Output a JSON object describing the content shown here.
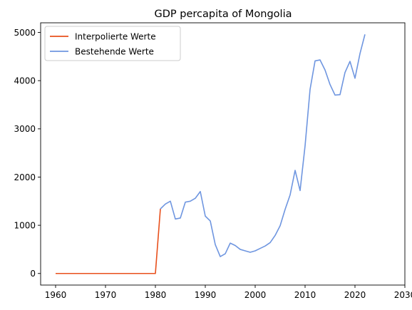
{
  "chart_data": {
    "type": "line",
    "title": "GDP percapita of Mongolia",
    "xlabel": "",
    "ylabel": "",
    "xlim": [
      1957,
      2030
    ],
    "ylim": [
      -240,
      5200
    ],
    "xticks": [
      1960,
      1970,
      1980,
      1990,
      2000,
      2010,
      2020,
      2030
    ],
    "yticks": [
      0,
      1000,
      2000,
      3000,
      4000,
      5000
    ],
    "grid": false,
    "legend_position": "top-left",
    "series": [
      {
        "name": "Interpolierte Werte",
        "color": "#e8501c",
        "x": [
          1960,
          1961,
          1962,
          1963,
          1964,
          1965,
          1966,
          1967,
          1968,
          1969,
          1970,
          1971,
          1972,
          1973,
          1974,
          1975,
          1976,
          1977,
          1978,
          1979,
          1980,
          1981
        ],
        "y": [
          0,
          0,
          0,
          0,
          0,
          0,
          0,
          0,
          0,
          0,
          0,
          0,
          0,
          0,
          0,
          0,
          0,
          0,
          0,
          0,
          0,
          1340
        ]
      },
      {
        "name": "Bestehende Werte",
        "color": "#6f96e0",
        "x": [
          1981,
          1982,
          1983,
          1984,
          1985,
          1986,
          1987,
          1988,
          1989,
          1990,
          1991,
          1992,
          1993,
          1994,
          1995,
          1996,
          1997,
          1998,
          1999,
          2000,
          2001,
          2002,
          2003,
          2004,
          2005,
          2006,
          2007,
          2008,
          2009,
          2010,
          2011,
          2012,
          2013,
          2014,
          2015,
          2016,
          2017,
          2018,
          2019,
          2020,
          2021,
          2022
        ],
        "y": [
          1340,
          1440,
          1500,
          1130,
          1150,
          1480,
          1500,
          1560,
          1700,
          1190,
          1090,
          600,
          350,
          410,
          630,
          580,
          500,
          470,
          440,
          470,
          520,
          570,
          640,
          790,
          990,
          1330,
          1630,
          2140,
          1720,
          2650,
          3820,
          4410,
          4430,
          4220,
          3920,
          3700,
          3710,
          4170,
          4400,
          4050,
          4560,
          4960
        ]
      }
    ]
  }
}
